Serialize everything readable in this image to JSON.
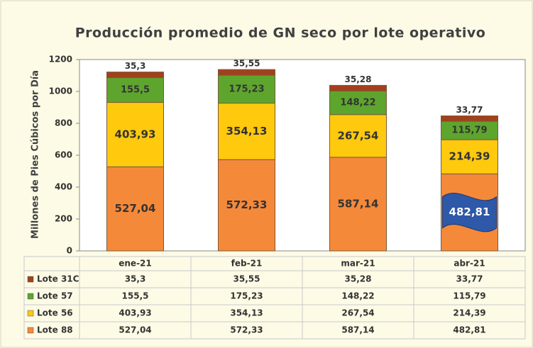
{
  "chart_data": {
    "type": "stacked_bar",
    "title": "Producción promedio de GN seco por lote operativo",
    "y_label": "Millones de Pies Cúbicos por Día",
    "categories": [
      "ene-21",
      "feb-21",
      "mar-21",
      "abr-21"
    ],
    "series": [
      {
        "name": "Lote 88",
        "color": "#f5893a",
        "values": [
          527.04,
          572.33,
          587.14,
          482.81
        ],
        "value_labels": [
          "527,04",
          "572,33",
          "587,14",
          "482,81"
        ]
      },
      {
        "name": "Lote 56",
        "color": "#ffc90e",
        "values": [
          403.93,
          354.13,
          267.54,
          214.39
        ],
        "value_labels": [
          "403,93",
          "354,13",
          "267,54",
          "214,39"
        ]
      },
      {
        "name": "Lote 57",
        "color": "#5ea52e",
        "values": [
          155.5,
          175.23,
          148.22,
          115.79
        ],
        "value_labels": [
          "155,5",
          "175,23",
          "148,22",
          "115,79"
        ]
      },
      {
        "name": "Lote 31C",
        "color": "#a3401c",
        "values": [
          35.3,
          35.55,
          35.28,
          33.77
        ],
        "value_labels": [
          "35,3",
          "35,55",
          "35,28",
          "33,77"
        ]
      }
    ],
    "ylim": [
      0,
      1200
    ],
    "yticks": [
      0,
      200,
      400,
      600,
      800,
      1000,
      1200
    ]
  }
}
